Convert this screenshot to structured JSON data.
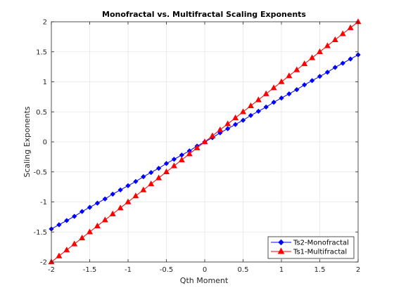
{
  "chart_data": {
    "type": "line",
    "title": "Monofractal vs. Multifractal Scaling Exponents",
    "xlabel": "Qth Moment",
    "ylabel": "Scaling Exponents",
    "xlim": [
      -2,
      2
    ],
    "ylim": [
      -2,
      2
    ],
    "grid": true,
    "legend_position": "bottom-right",
    "x_ticks": [
      -2,
      -1.5,
      -1,
      -0.5,
      0,
      0.5,
      1,
      1.5,
      2
    ],
    "x_tick_labels": [
      "-2",
      "-1.5",
      "-1",
      "-0.5",
      "0",
      "0.5",
      "1",
      "1.5",
      "2"
    ],
    "y_ticks": [
      -2,
      -1.5,
      -1,
      -0.5,
      0,
      0.5,
      1,
      1.5,
      2
    ],
    "y_tick_labels": [
      "-2",
      "-1.5",
      "-1",
      "-0.5",
      "0",
      "0.5",
      "1",
      "1.5",
      "2"
    ],
    "series": [
      {
        "name": "Ts2-Monofractal",
        "color": "#0000ff",
        "marker": "diamond",
        "x": [
          -2,
          -1.9,
          -1.8,
          -1.7,
          -1.6,
          -1.5,
          -1.4,
          -1.3,
          -1.2,
          -1.1,
          -1,
          -0.9,
          -0.8,
          -0.7,
          -0.6,
          -0.5,
          -0.4,
          -0.3,
          -0.2,
          -0.1,
          0,
          0.1,
          0.2,
          0.3,
          0.4,
          0.5,
          0.6,
          0.7,
          0.8,
          0.9,
          1,
          1.1,
          1.2,
          1.3,
          1.4,
          1.5,
          1.6,
          1.7,
          1.8,
          1.9,
          2
        ],
        "y": [
          -1.45,
          -1.38,
          -1.31,
          -1.24,
          -1.16,
          -1.09,
          -1.02,
          -0.95,
          -0.87,
          -0.8,
          -0.73,
          -0.66,
          -0.58,
          -0.51,
          -0.44,
          -0.36,
          -0.29,
          -0.22,
          -0.15,
          -0.07,
          0,
          0.07,
          0.15,
          0.22,
          0.29,
          0.36,
          0.44,
          0.51,
          0.58,
          0.66,
          0.73,
          0.8,
          0.87,
          0.95,
          1.02,
          1.09,
          1.16,
          1.24,
          1.31,
          1.38,
          1.45
        ]
      },
      {
        "name": "Ts1-Multifractal",
        "color": "#ff0000",
        "marker": "triangle",
        "x": [
          -2,
          -1.9,
          -1.8,
          -1.7,
          -1.6,
          -1.5,
          -1.4,
          -1.3,
          -1.2,
          -1.1,
          -1,
          -0.9,
          -0.8,
          -0.7,
          -0.6,
          -0.5,
          -0.4,
          -0.3,
          -0.2,
          -0.1,
          0,
          0.1,
          0.2,
          0.3,
          0.4,
          0.5,
          0.6,
          0.7,
          0.8,
          0.9,
          1,
          1.1,
          1.2,
          1.3,
          1.4,
          1.5,
          1.6,
          1.7,
          1.8,
          1.9,
          2
        ],
        "y": [
          -2,
          -1.9,
          -1.8,
          -1.7,
          -1.6,
          -1.5,
          -1.4,
          -1.3,
          -1.2,
          -1.1,
          -1,
          -0.9,
          -0.8,
          -0.7,
          -0.6,
          -0.5,
          -0.4,
          -0.3,
          -0.2,
          -0.1,
          0,
          0.1,
          0.2,
          0.3,
          0.4,
          0.5,
          0.6,
          0.7,
          0.8,
          0.9,
          1,
          1.1,
          1.2,
          1.3,
          1.4,
          1.5,
          1.6,
          1.7,
          1.8,
          1.9,
          2
        ]
      }
    ]
  }
}
